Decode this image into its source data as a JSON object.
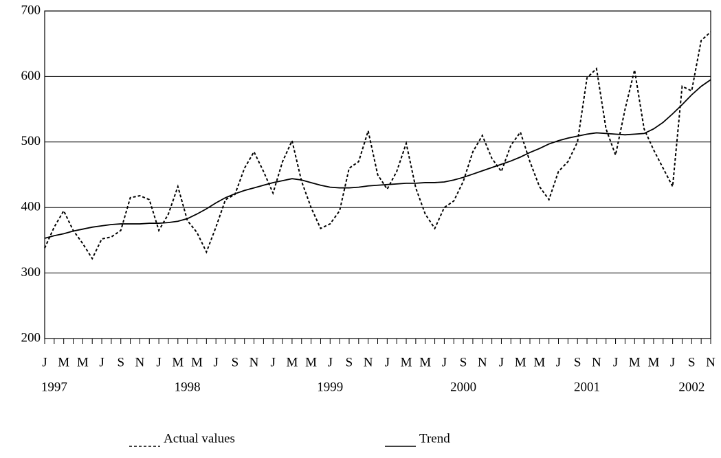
{
  "chart_data": {
    "type": "line",
    "categories": [
      "J",
      null,
      "M",
      null,
      "M",
      null,
      "J",
      null,
      "S",
      null,
      "N",
      null,
      "J",
      null,
      "M",
      null,
      "M",
      null,
      "J",
      null,
      "S",
      null,
      "N",
      null,
      "J",
      null,
      "M",
      null,
      "M",
      null,
      "J",
      null,
      "S",
      null,
      "N",
      null,
      "J",
      null,
      "M",
      null,
      "M",
      null,
      "J",
      null,
      "S",
      null,
      "N",
      null,
      "J",
      null,
      "M",
      null,
      "M",
      null,
      "J",
      null,
      "S",
      null,
      "N",
      null,
      "J",
      null,
      "M",
      null,
      "M",
      null,
      "J",
      null,
      "S",
      null,
      "N"
    ],
    "years": [
      null,
      "1997",
      null,
      null,
      null,
      null,
      null,
      null,
      null,
      null,
      null,
      null,
      null,
      null,
      null,
      "1998",
      null,
      null,
      null,
      null,
      null,
      null,
      null,
      null,
      null,
      null,
      null,
      null,
      null,
      null,
      "1999",
      null,
      null,
      null,
      null,
      null,
      null,
      null,
      null,
      null,
      null,
      null,
      null,
      null,
      "2000",
      null,
      null,
      null,
      null,
      null,
      null,
      null,
      null,
      null,
      null,
      null,
      null,
      "2001",
      null,
      null,
      null,
      null,
      null,
      null,
      null,
      null,
      null,
      null,
      "2002",
      null,
      null
    ],
    "series": [
      {
        "name": "Actual values",
        "color": "#000000",
        "dash": true,
        "values": [
          338,
          370,
          395,
          365,
          345,
          322,
          352,
          355,
          365,
          415,
          418,
          412,
          365,
          390,
          432,
          380,
          362,
          332,
          370,
          412,
          420,
          460,
          485,
          455,
          422,
          470,
          502,
          440,
          400,
          368,
          375,
          395,
          460,
          470,
          517,
          450,
          428,
          455,
          498,
          430,
          390,
          368,
          400,
          410,
          440,
          485,
          510,
          475,
          455,
          495,
          515,
          470,
          432,
          412,
          455,
          470,
          500,
          598,
          612,
          520,
          480,
          550,
          610,
          520,
          488,
          460,
          432,
          585,
          578,
          655,
          668
        ]
      },
      {
        "name": "Trend",
        "color": "#000000",
        "dash": false,
        "values": [
          353,
          357,
          360,
          364,
          367,
          370,
          372,
          374,
          375,
          375,
          375,
          376,
          376,
          377,
          379,
          383,
          390,
          398,
          407,
          415,
          421,
          426,
          430,
          434,
          438,
          441,
          444,
          442,
          438,
          434,
          431,
          430,
          430,
          431,
          433,
          434,
          435,
          436,
          437,
          437,
          438,
          438,
          439,
          442,
          446,
          451,
          456,
          461,
          466,
          471,
          477,
          484,
          490,
          497,
          502,
          506,
          509,
          512,
          514,
          513,
          512,
          511,
          512,
          513,
          520,
          530,
          543,
          557,
          572,
          585,
          595
        ]
      }
    ],
    "ylim": [
      200,
      700
    ],
    "yticks": [
      200,
      300,
      400,
      500,
      600,
      700
    ],
    "grid": true
  }
}
